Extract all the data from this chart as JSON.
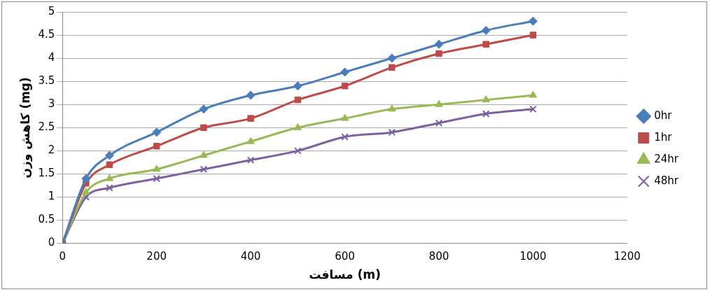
{
  "chart_data": {
    "type": "line",
    "xlabel": "مسافت (m)",
    "ylabel": "کاهش وزن (mg)",
    "x": [
      0,
      50,
      100,
      200,
      300,
      400,
      500,
      600,
      700,
      800,
      900,
      1000
    ],
    "xlim": [
      0,
      1200
    ],
    "xticks": [
      0,
      200,
      400,
      600,
      800,
      1000,
      1200
    ],
    "ylim": [
      0,
      5
    ],
    "yticks": [
      0,
      0.5,
      1,
      1.5,
      2,
      2.5,
      3,
      3.5,
      4,
      4.5,
      5
    ],
    "grid": "y",
    "legend": "right",
    "series": [
      {
        "name": "0hr",
        "color": "#4a7ebb",
        "marker": "diamond",
        "values": [
          0,
          1.4,
          1.9,
          2.4,
          2.9,
          3.2,
          3.4,
          3.7,
          4.0,
          4.3,
          4.6,
          4.8
        ]
      },
      {
        "name": "1hr",
        "color": "#be4b48",
        "marker": "square",
        "values": [
          0,
          1.3,
          1.7,
          2.1,
          2.5,
          2.7,
          3.1,
          3.4,
          3.8,
          4.1,
          4.3,
          4.5
        ]
      },
      {
        "name": "24hr",
        "color": "#98b954",
        "marker": "triangle",
        "values": [
          0,
          1.1,
          1.4,
          1.6,
          1.9,
          2.2,
          2.5,
          2.7,
          2.9,
          3.0,
          3.1,
          3.2
        ]
      },
      {
        "name": "48hr",
        "color": "#7d60a0",
        "marker": "cross",
        "values": [
          0,
          1.0,
          1.2,
          1.4,
          1.6,
          1.8,
          2.0,
          2.3,
          2.4,
          2.6,
          2.8,
          2.9
        ]
      }
    ]
  }
}
